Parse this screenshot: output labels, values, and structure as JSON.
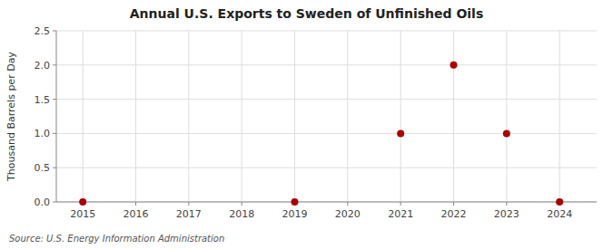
{
  "chart_data": {
    "type": "scatter",
    "title": "Annual U.S. Exports to Sweden of Unfinished Oils",
    "ylabel": "Thousand Barrels per Day",
    "source": "Source: U.S. Energy Information Administration",
    "x": [
      2015,
      2019,
      2021,
      2022,
      2023,
      2024
    ],
    "values": [
      0.0,
      0.0,
      1.0,
      2.0,
      1.0,
      0.0
    ],
    "color": "#aa0000",
    "marker": "circle",
    "xlim": [
      2014.5,
      2024.7
    ],
    "ylim": [
      0,
      2.5
    ],
    "xticks": [
      2015,
      2016,
      2017,
      2018,
      2019,
      2020,
      2021,
      2022,
      2023,
      2024
    ],
    "yticks": [
      {
        "value": 0.0,
        "label": "0.0"
      },
      0.5,
      {
        "value": 1.0,
        "label": "1.0"
      },
      1.5,
      {
        "value": 2.0,
        "label": "2.0"
      },
      2.5
    ],
    "grid": true
  }
}
